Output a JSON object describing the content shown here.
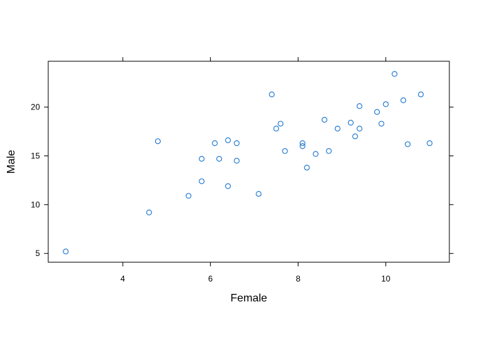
{
  "chart_data": {
    "type": "scatter",
    "title": "",
    "xlabel": "Female",
    "ylabel": "Male",
    "xlim": [
      2.3,
      11.45
    ],
    "ylim": [
      4.1,
      24.7
    ],
    "xticks": [
      4,
      6,
      8,
      10
    ],
    "yticks": [
      5,
      10,
      15,
      20
    ],
    "grid": false,
    "legend": "none",
    "point_color": "#1f77d0",
    "series": [
      {
        "x": [
          2.7,
          4.6,
          4.8,
          5.5,
          5.8,
          5.8,
          6.1,
          6.2,
          6.4,
          6.4,
          6.6,
          6.6,
          7.1,
          7.4,
          7.5,
          7.6,
          7.7,
          8.1,
          8.1,
          8.2,
          8.4,
          8.6,
          8.7,
          8.9,
          9.2,
          9.3,
          9.4,
          9.4,
          9.8,
          9.9,
          10.0,
          10.2,
          10.4,
          10.5,
          10.8,
          11.0
        ],
        "y": [
          5.2,
          9.2,
          16.5,
          10.9,
          12.4,
          14.7,
          16.3,
          14.7,
          11.9,
          16.6,
          14.5,
          16.3,
          11.1,
          21.3,
          17.8,
          18.3,
          15.5,
          16.0,
          16.3,
          13.8,
          15.2,
          18.7,
          15.5,
          17.8,
          18.4,
          17.0,
          17.8,
          20.1,
          19.5,
          18.3,
          20.3,
          23.4,
          20.7,
          16.2,
          21.3,
          16.3
        ]
      }
    ]
  }
}
